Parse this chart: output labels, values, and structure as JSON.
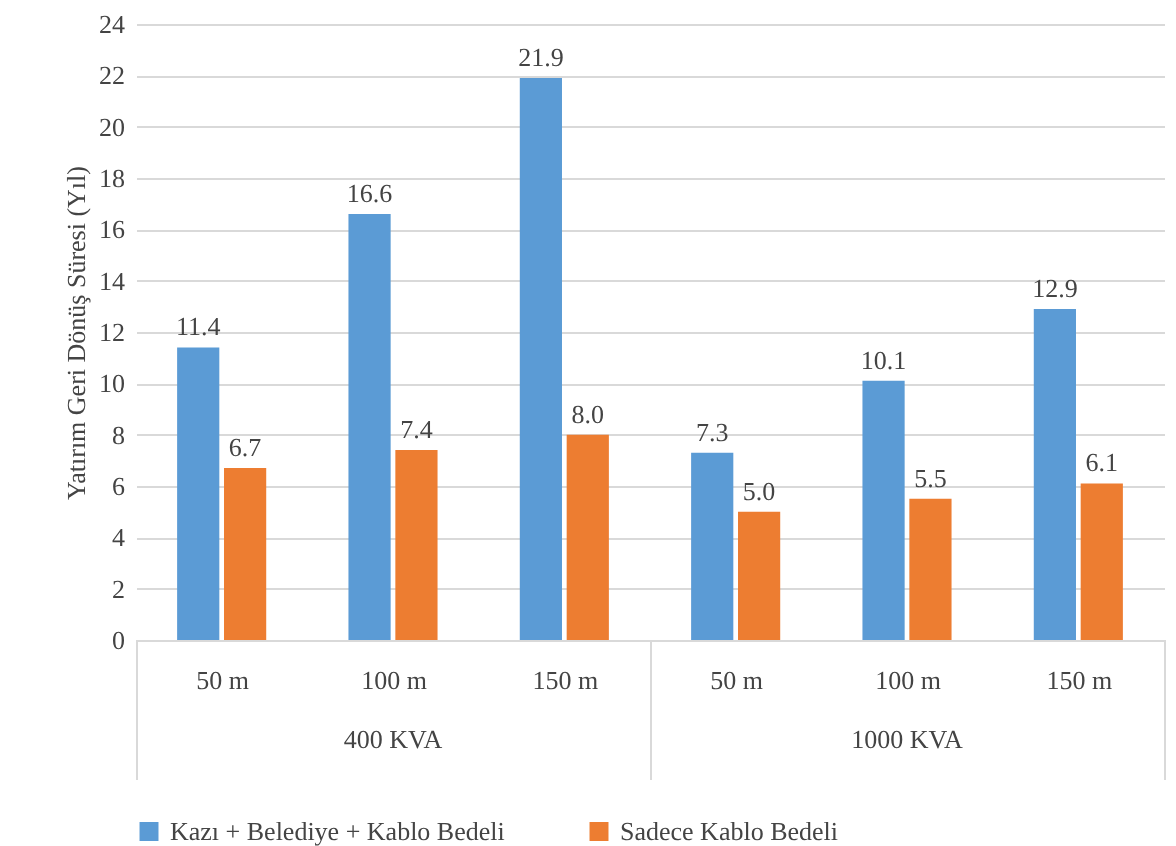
{
  "chart_data": {
    "type": "bar",
    "ylabel": "Yatırım Geri Dönüş Süresi (Yıl)",
    "categories": [
      "50 m",
      "100 m",
      "150 m",
      "50 m",
      "100 m",
      "150 m"
    ],
    "series": [
      {
        "name": "Kazı + Belediye + Kablo Bedeli",
        "color": "#5b9bd5",
        "values": [
          11.4,
          16.6,
          21.9,
          7.3,
          10.1,
          12.9
        ],
        "value_labels": [
          "11.4",
          "16.6",
          "21.9",
          "7.3",
          "10.1",
          "12.9"
        ]
      },
      {
        "name": "Sadece Kablo Bedeli",
        "color": "#ed7d31",
        "values": [
          6.7,
          7.4,
          8.0,
          5.0,
          5.5,
          6.1
        ],
        "value_labels": [
          "6.7",
          "7.4",
          "8.0",
          "5.0",
          "5.5",
          "6.1"
        ]
      }
    ],
    "ylim": [
      0,
      24
    ],
    "yticks": [
      0,
      2,
      4,
      6,
      8,
      10,
      12,
      14,
      16,
      18,
      20,
      22,
      24
    ],
    "grid": "y",
    "legend": "bottom",
    "annotations": [
      "400 KVA",
      "1000 KVA"
    ]
  }
}
